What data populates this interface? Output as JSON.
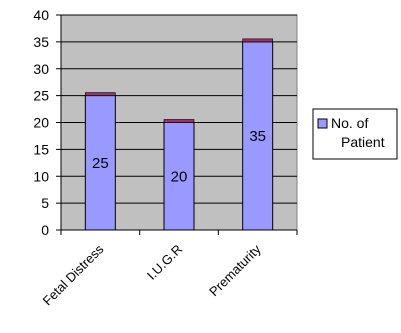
{
  "chart_data": {
    "type": "bar",
    "categories": [
      "Fetal Distress",
      "I.U.G.R",
      "Prematurity"
    ],
    "series": [
      {
        "name": "No. of Patient",
        "values": [
          25,
          20,
          35
        ]
      }
    ],
    "ylim": [
      0,
      40
    ],
    "yticks": [
      0,
      5,
      10,
      15,
      20,
      25,
      30,
      35,
      40
    ],
    "grid": true,
    "legend": "right",
    "legend_lines": [
      "No. of",
      "Patient"
    ],
    "colors": {
      "bar": "#9999ff",
      "bar_top": "#993366",
      "plot_bg": "#c0c0c0"
    }
  }
}
